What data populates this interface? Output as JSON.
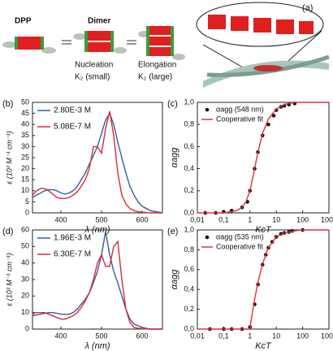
{
  "diagram": {
    "label": "(a)",
    "dpp": "DPP",
    "dimer": "Dimer",
    "nucleation": "Nucleation",
    "k_small": "K₂ (small)",
    "elongation": "Elongation",
    "k_large": "K₂ (large)"
  },
  "chart_data": [
    {
      "type": "line",
      "title": "(b)",
      "x_label": "λ (nm)",
      "y_label": "ε (10³ M⁻¹ cm⁻¹)",
      "x": [
        330,
        340,
        350,
        360,
        370,
        380,
        390,
        400,
        410,
        420,
        430,
        440,
        450,
        460,
        470,
        480,
        490,
        500,
        510,
        520,
        530,
        540,
        550,
        560,
        570,
        580,
        590,
        600,
        620,
        650
      ],
      "series": [
        {
          "name": "2.80E-3 M",
          "color": "#3b5a9a",
          "values": [
            7,
            8,
            9,
            10,
            10.5,
            10.5,
            10,
            9,
            8.5,
            9,
            10,
            12,
            15,
            18,
            22,
            26,
            30,
            36,
            42,
            45,
            40,
            32,
            25,
            18,
            12,
            8,
            5,
            3,
            1,
            0
          ]
        },
        {
          "name": "5.08E-7 M",
          "color": "#d62a3c",
          "values": [
            8,
            10,
            11,
            11,
            10,
            8.5,
            7,
            6.5,
            6.5,
            7,
            8,
            9.5,
            12,
            15,
            20,
            30,
            30,
            27,
            38,
            46,
            35,
            18,
            8,
            4,
            2,
            1,
            0.5,
            0.3,
            0,
            0
          ]
        }
      ],
      "xlim": [
        330,
        650
      ],
      "xticks": [
        400,
        500,
        600
      ],
      "ylim": [
        0,
        50
      ],
      "yticks": [
        0,
        5,
        10,
        15,
        20,
        25,
        30,
        35,
        40,
        45,
        50
      ]
    },
    {
      "type": "scatter",
      "title": "(c)",
      "x_label": "KcT",
      "y_label": "αagg",
      "xscale": "log",
      "series": [
        {
          "name": "αagg (548 nm)",
          "mode": "markers",
          "color": "#111111",
          "x": [
            0.02,
            0.05,
            0.1,
            0.2,
            0.5,
            0.8,
            1,
            1.5,
            2,
            3,
            5,
            8,
            10,
            15,
            20,
            30,
            50
          ],
          "values": [
            0,
            0,
            0.01,
            0.02,
            0.05,
            0.1,
            0.2,
            0.4,
            0.55,
            0.7,
            0.8,
            0.88,
            0.93,
            0.96,
            0.97,
            0.98,
            0.99
          ]
        },
        {
          "name": "Cooperative fit",
          "mode": "line",
          "color": "#e03040",
          "x": [
            0.01,
            0.1,
            0.3,
            0.5,
            0.7,
            1,
            1.5,
            2,
            3,
            5,
            10,
            20,
            50,
            100,
            1000
          ],
          "values": [
            0,
            0,
            0.02,
            0.05,
            0.1,
            0.2,
            0.4,
            0.55,
            0.72,
            0.85,
            0.94,
            0.98,
            1,
            1,
            1
          ]
        }
      ],
      "xlim": [
        0.01,
        1000
      ],
      "xticks": [
        {
          "value": 0.01,
          "label": "0,01"
        },
        {
          "value": 0.1,
          "label": "0,1"
        },
        1,
        10,
        100,
        1000
      ],
      "ylim": [
        0,
        1
      ],
      "yticks": [
        {
          "value": 0,
          "label": "0,0"
        },
        {
          "value": 0.2,
          "label": "0,2"
        },
        {
          "value": 0.4,
          "label": "0,4"
        },
        {
          "value": 0.6,
          "label": "0,6"
        },
        {
          "value": 0.8,
          "label": "0,8"
        },
        {
          "value": 1,
          "label": "1,0"
        }
      ]
    },
    {
      "type": "line",
      "title": "(d)",
      "x_label": "λ (nm)",
      "y_label": "ε (10³ M⁻¹ cm⁻¹)",
      "x": [
        330,
        340,
        350,
        360,
        370,
        380,
        390,
        400,
        410,
        420,
        430,
        440,
        450,
        460,
        470,
        480,
        490,
        500,
        510,
        520,
        530,
        540,
        550,
        560,
        570,
        580,
        590,
        600,
        620,
        650
      ],
      "series": [
        {
          "name": "1.96E-3 M",
          "color": "#3b5a9a",
          "values": [
            8,
            8.5,
            9,
            9.5,
            10,
            10,
            9.5,
            9,
            8.8,
            9,
            10,
            12,
            15,
            18,
            22,
            28,
            35,
            45,
            59,
            45,
            35,
            28,
            20,
            12,
            6,
            3,
            2,
            1,
            0,
            0
          ]
        },
        {
          "name": "6.30E-7 M",
          "color": "#d62a3c",
          "values": [
            9,
            10,
            10,
            10,
            9,
            8,
            7,
            6,
            6,
            7,
            8,
            10,
            13,
            17,
            22,
            30,
            40,
            45,
            38,
            38,
            50,
            53,
            30,
            12,
            4,
            1,
            0.5,
            0.3,
            0,
            0
          ]
        }
      ],
      "xlim": [
        330,
        650
      ],
      "xticks": [
        400,
        500,
        600
      ],
      "ylim": [
        0,
        60
      ],
      "yticks": [
        0,
        10,
        20,
        30,
        40,
        50,
        60
      ]
    },
    {
      "type": "scatter",
      "title": "(e)",
      "x_label": "KcT",
      "y_label": "αagg",
      "xscale": "log",
      "series": [
        {
          "name": "αagg (535 nm)",
          "mode": "markers",
          "color": "#111111",
          "x": [
            0.03,
            0.1,
            0.2,
            0.5,
            1,
            1.5,
            2,
            3,
            4,
            5,
            7,
            10,
            15,
            20,
            30,
            40,
            100
          ],
          "values": [
            0,
            0,
            0,
            0,
            0.02,
            0.25,
            0.45,
            0.65,
            0.75,
            0.82,
            0.88,
            0.93,
            0.96,
            0.97,
            0.98,
            0.99,
            1
          ]
        },
        {
          "name": "Cooperative fit",
          "mode": "line",
          "color": "#e03040",
          "x": [
            0.01,
            0.5,
            1,
            1.05,
            1.2,
            1.5,
            2,
            3,
            5,
            10,
            20,
            50,
            100,
            1000
          ],
          "values": [
            0,
            0,
            0,
            0.05,
            0.15,
            0.3,
            0.47,
            0.66,
            0.82,
            0.93,
            0.97,
            0.99,
            1,
            1
          ]
        }
      ],
      "xlim": [
        0.01,
        1000
      ],
      "xticks": [
        {
          "value": 0.01,
          "label": "0,01"
        },
        {
          "value": 0.1,
          "label": "0,1"
        },
        1,
        10,
        100,
        1000
      ],
      "ylim": [
        0,
        1
      ],
      "yticks": [
        {
          "value": 0,
          "label": "0,0"
        },
        {
          "value": 0.2,
          "label": "0,2"
        },
        {
          "value": 0.4,
          "label": "0,4"
        },
        {
          "value": 0.6,
          "label": "0,6"
        },
        {
          "value": 0.8,
          "label": "0,8"
        },
        {
          "value": 1,
          "label": "1,0"
        }
      ]
    }
  ]
}
